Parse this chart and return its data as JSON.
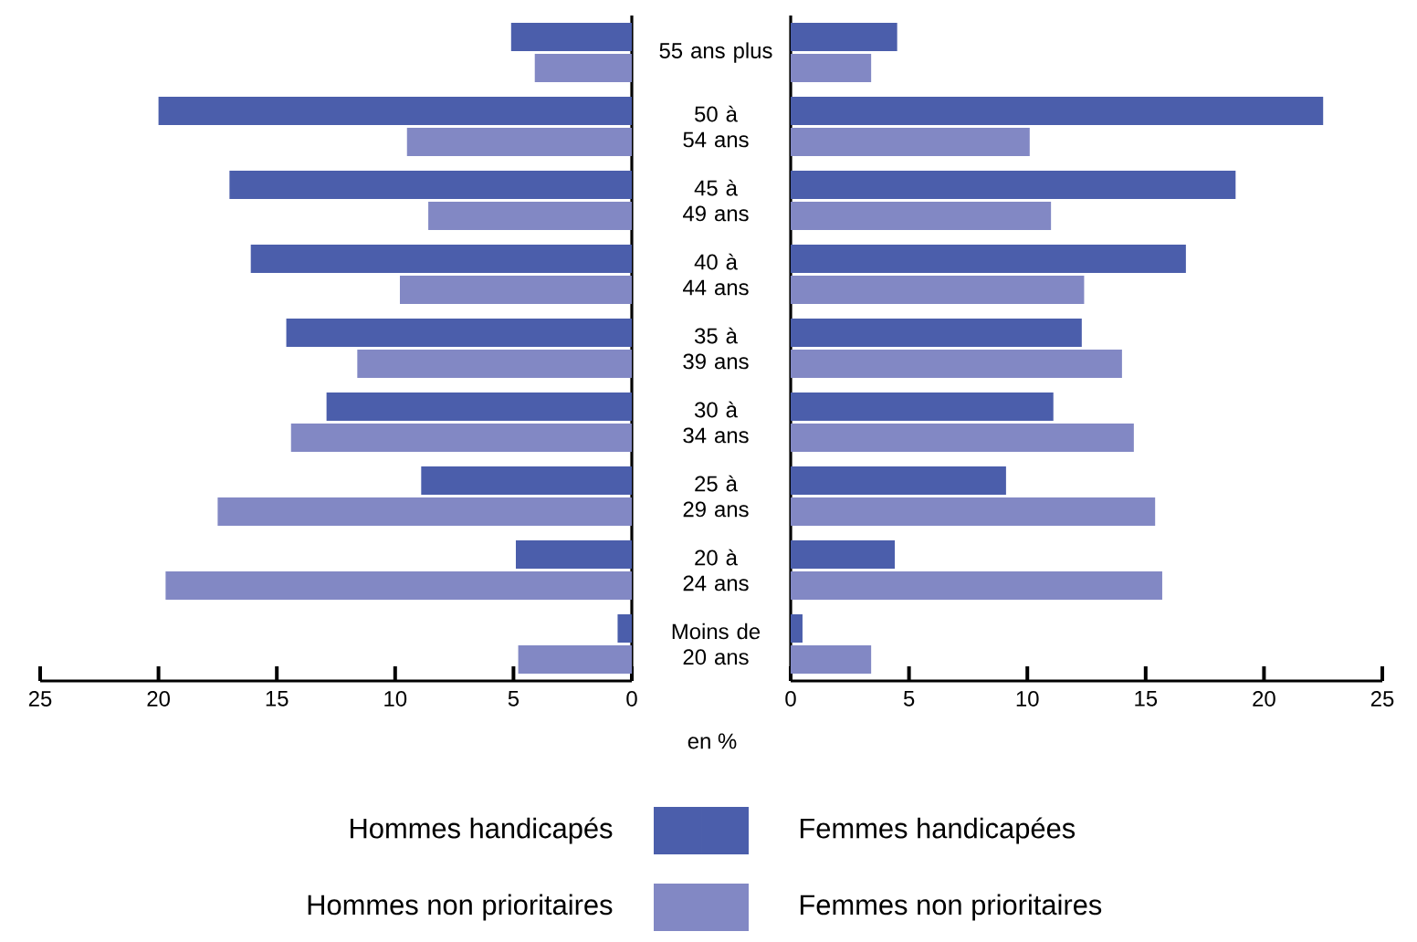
{
  "chart_data": [
    {
      "type": "bar",
      "orientation": "horizontal",
      "categories": [
        "55 ans plus",
        "50 à 54 ans",
        "45 à 49 ans",
        "40 à 44 ans",
        "35 à 39 ans",
        "30 à 34 ans",
        "25 à 29 ans",
        "20 à 24 ans",
        "Moins de 20 ans"
      ],
      "series": [
        {
          "name": "Hommes handicapés",
          "color": "#4b5eab",
          "values": [
            5.1,
            20.0,
            17.0,
            16.1,
            14.6,
            12.9,
            8.9,
            4.9,
            0.6
          ]
        },
        {
          "name": "Hommes non prioritaires",
          "color": "#8288c4",
          "values": [
            4.1,
            9.5,
            8.6,
            9.8,
            11.6,
            14.4,
            17.5,
            19.7,
            4.8
          ]
        }
      ],
      "xlim": [
        25,
        0
      ],
      "xticks": [
        25,
        20,
        15,
        10,
        5,
        0
      ],
      "legend": "bottom",
      "annotations": [
        "en %"
      ]
    },
    {
      "type": "bar",
      "orientation": "horizontal",
      "categories": [
        null,
        null,
        null,
        null,
        null,
        null,
        null,
        null,
        null
      ],
      "series": [
        {
          "name": "Femmes handicapées",
          "color": "#4b5eab",
          "values": [
            4.5,
            22.5,
            18.8,
            16.7,
            12.3,
            11.1,
            9.1,
            4.4,
            0.5
          ]
        },
        {
          "name": "Femmes non prioritaires",
          "color": "#8288c4",
          "values": [
            3.4,
            10.1,
            11.0,
            12.4,
            14.0,
            14.5,
            15.4,
            15.7,
            3.4
          ]
        }
      ],
      "xlim": [
        0,
        25
      ],
      "xticks": [
        0,
        5,
        10,
        15,
        20,
        25
      ],
      "legend": "bottom"
    }
  ]
}
